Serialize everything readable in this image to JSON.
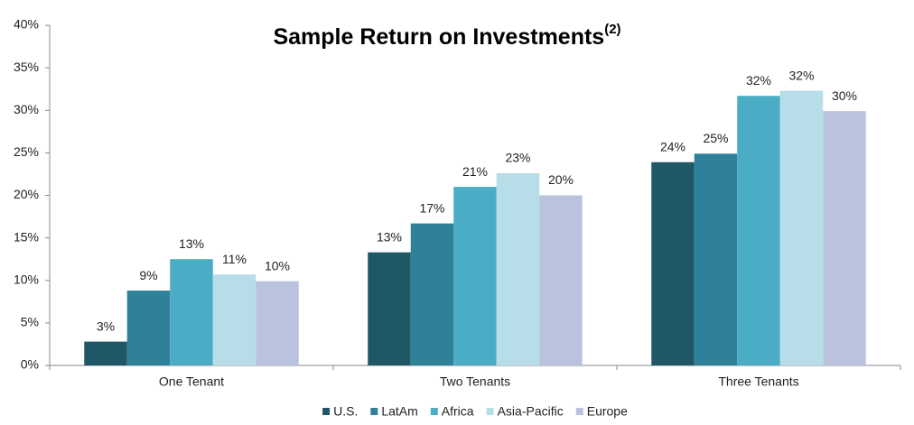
{
  "chart_data": {
    "type": "bar",
    "title": "Sample Return on Investments",
    "title_note": "(2)",
    "categories": [
      "One Tenant",
      "Two Tenants",
      "Three Tenants"
    ],
    "series": [
      {
        "name": "U.S.",
        "color": "#1f5767",
        "values": [
          2.8,
          13.3,
          23.9
        ],
        "value_labels": [
          "3%",
          "13%",
          "24%"
        ]
      },
      {
        "name": "LatAm",
        "color": "#2e8199",
        "values": [
          8.8,
          16.7,
          24.9
        ],
        "value_labels": [
          "9%",
          "17%",
          "25%"
        ]
      },
      {
        "name": "Africa",
        "color": "#4bacc6",
        "values": [
          12.5,
          21.0,
          31.7
        ],
        "value_labels": [
          "13%",
          "21%",
          "32%"
        ]
      },
      {
        "name": "Asia-Pacific",
        "color": "#b7dde8",
        "values": [
          10.7,
          22.6,
          32.3
        ],
        "value_labels": [
          "11%",
          "23%",
          "32%"
        ]
      },
      {
        "name": "Europe",
        "color": "#b9c3de",
        "values": [
          9.9,
          20.0,
          29.9
        ],
        "value_labels": [
          "10%",
          "20%",
          "30%"
        ]
      }
    ],
    "ylim": [
      0,
      40
    ],
    "yticks": [
      {
        "value": 0,
        "label": "0%"
      },
      {
        "value": 5,
        "label": "5%"
      },
      {
        "value": 10,
        "label": "10%"
      },
      {
        "value": 15,
        "label": "15%"
      },
      {
        "value": 20,
        "label": "20%"
      },
      {
        "value": 25,
        "label": "25%"
      },
      {
        "value": 30,
        "label": "30%"
      },
      {
        "value": 35,
        "label": "35%"
      },
      {
        "value": 40,
        "label": "40%"
      }
    ],
    "grid": false,
    "legend": "bottom"
  }
}
